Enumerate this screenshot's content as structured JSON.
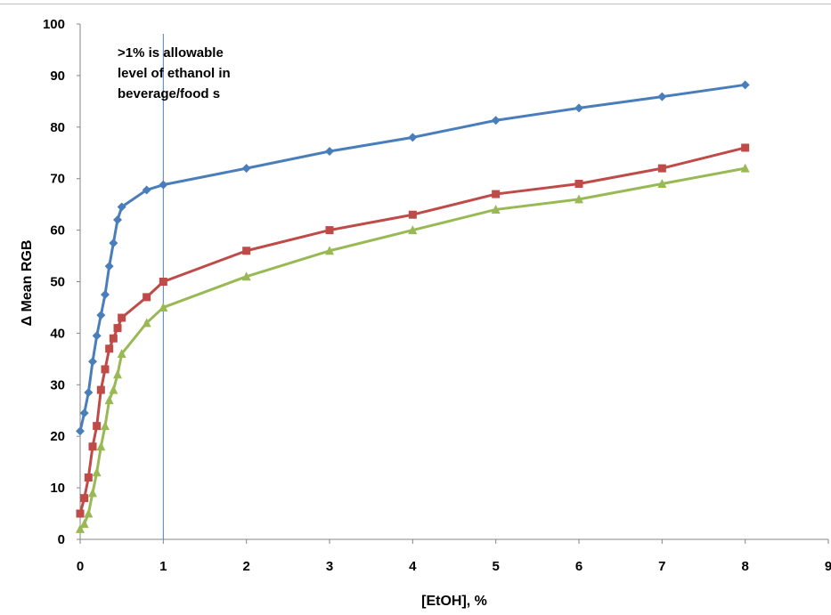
{
  "chart_data": {
    "type": "line",
    "xlabel": "[EtOH], %",
    "ylabel": "Δ Mean RGB",
    "xlim": [
      0,
      9
    ],
    "ylim": [
      0,
      100
    ],
    "x_ticks": [
      0,
      1,
      2,
      3,
      4,
      5,
      6,
      7,
      8,
      9
    ],
    "y_ticks": [
      0,
      10,
      20,
      30,
      40,
      50,
      60,
      70,
      80,
      90,
      100
    ],
    "grid": false,
    "legend": "none",
    "annotation": {
      "lines": [
        ">1%  is allowable",
        "level of ethanol in",
        "beverage/food s"
      ],
      "x_marker": 1
    },
    "series": [
      {
        "color": "#4a7ebb",
        "marker": "diamond",
        "points": [
          [
            0,
            21
          ],
          [
            0.05,
            24.5
          ],
          [
            0.1,
            28.5
          ],
          [
            0.15,
            34.5
          ],
          [
            0.2,
            39.5
          ],
          [
            0.25,
            43.5
          ],
          [
            0.3,
            47.5
          ],
          [
            0.35,
            53
          ],
          [
            0.4,
            57.5
          ],
          [
            0.45,
            62
          ],
          [
            0.5,
            64.5
          ],
          [
            0.8,
            67.8
          ],
          [
            1,
            68.8
          ],
          [
            2,
            72
          ],
          [
            3,
            75.3
          ],
          [
            4,
            78
          ],
          [
            5,
            81.3
          ],
          [
            6,
            83.7
          ],
          [
            7,
            85.9
          ],
          [
            8,
            88.2
          ]
        ]
      },
      {
        "color": "#be4b48",
        "marker": "square",
        "points": [
          [
            0,
            5
          ],
          [
            0.05,
            8
          ],
          [
            0.1,
            12
          ],
          [
            0.15,
            18
          ],
          [
            0.2,
            22
          ],
          [
            0.25,
            29
          ],
          [
            0.3,
            33
          ],
          [
            0.35,
            37
          ],
          [
            0.4,
            39
          ],
          [
            0.45,
            41
          ],
          [
            0.5,
            43
          ],
          [
            0.8,
            47
          ],
          [
            1,
            50
          ],
          [
            2,
            56
          ],
          [
            3,
            60
          ],
          [
            4,
            63
          ],
          [
            5,
            67
          ],
          [
            6,
            69
          ],
          [
            7,
            72
          ],
          [
            8,
            76
          ]
        ]
      },
      {
        "color": "#98b954",
        "marker": "triangle",
        "points": [
          [
            0,
            2
          ],
          [
            0.05,
            3
          ],
          [
            0.1,
            5
          ],
          [
            0.15,
            9
          ],
          [
            0.2,
            13
          ],
          [
            0.25,
            18
          ],
          [
            0.3,
            22
          ],
          [
            0.35,
            27
          ],
          [
            0.4,
            29
          ],
          [
            0.45,
            32
          ],
          [
            0.5,
            36
          ],
          [
            0.8,
            42
          ],
          [
            1,
            45
          ],
          [
            2,
            51
          ],
          [
            3,
            56
          ],
          [
            4,
            60
          ],
          [
            5,
            64
          ],
          [
            6,
            66
          ],
          [
            7,
            69
          ],
          [
            8,
            72
          ]
        ]
      }
    ]
  }
}
